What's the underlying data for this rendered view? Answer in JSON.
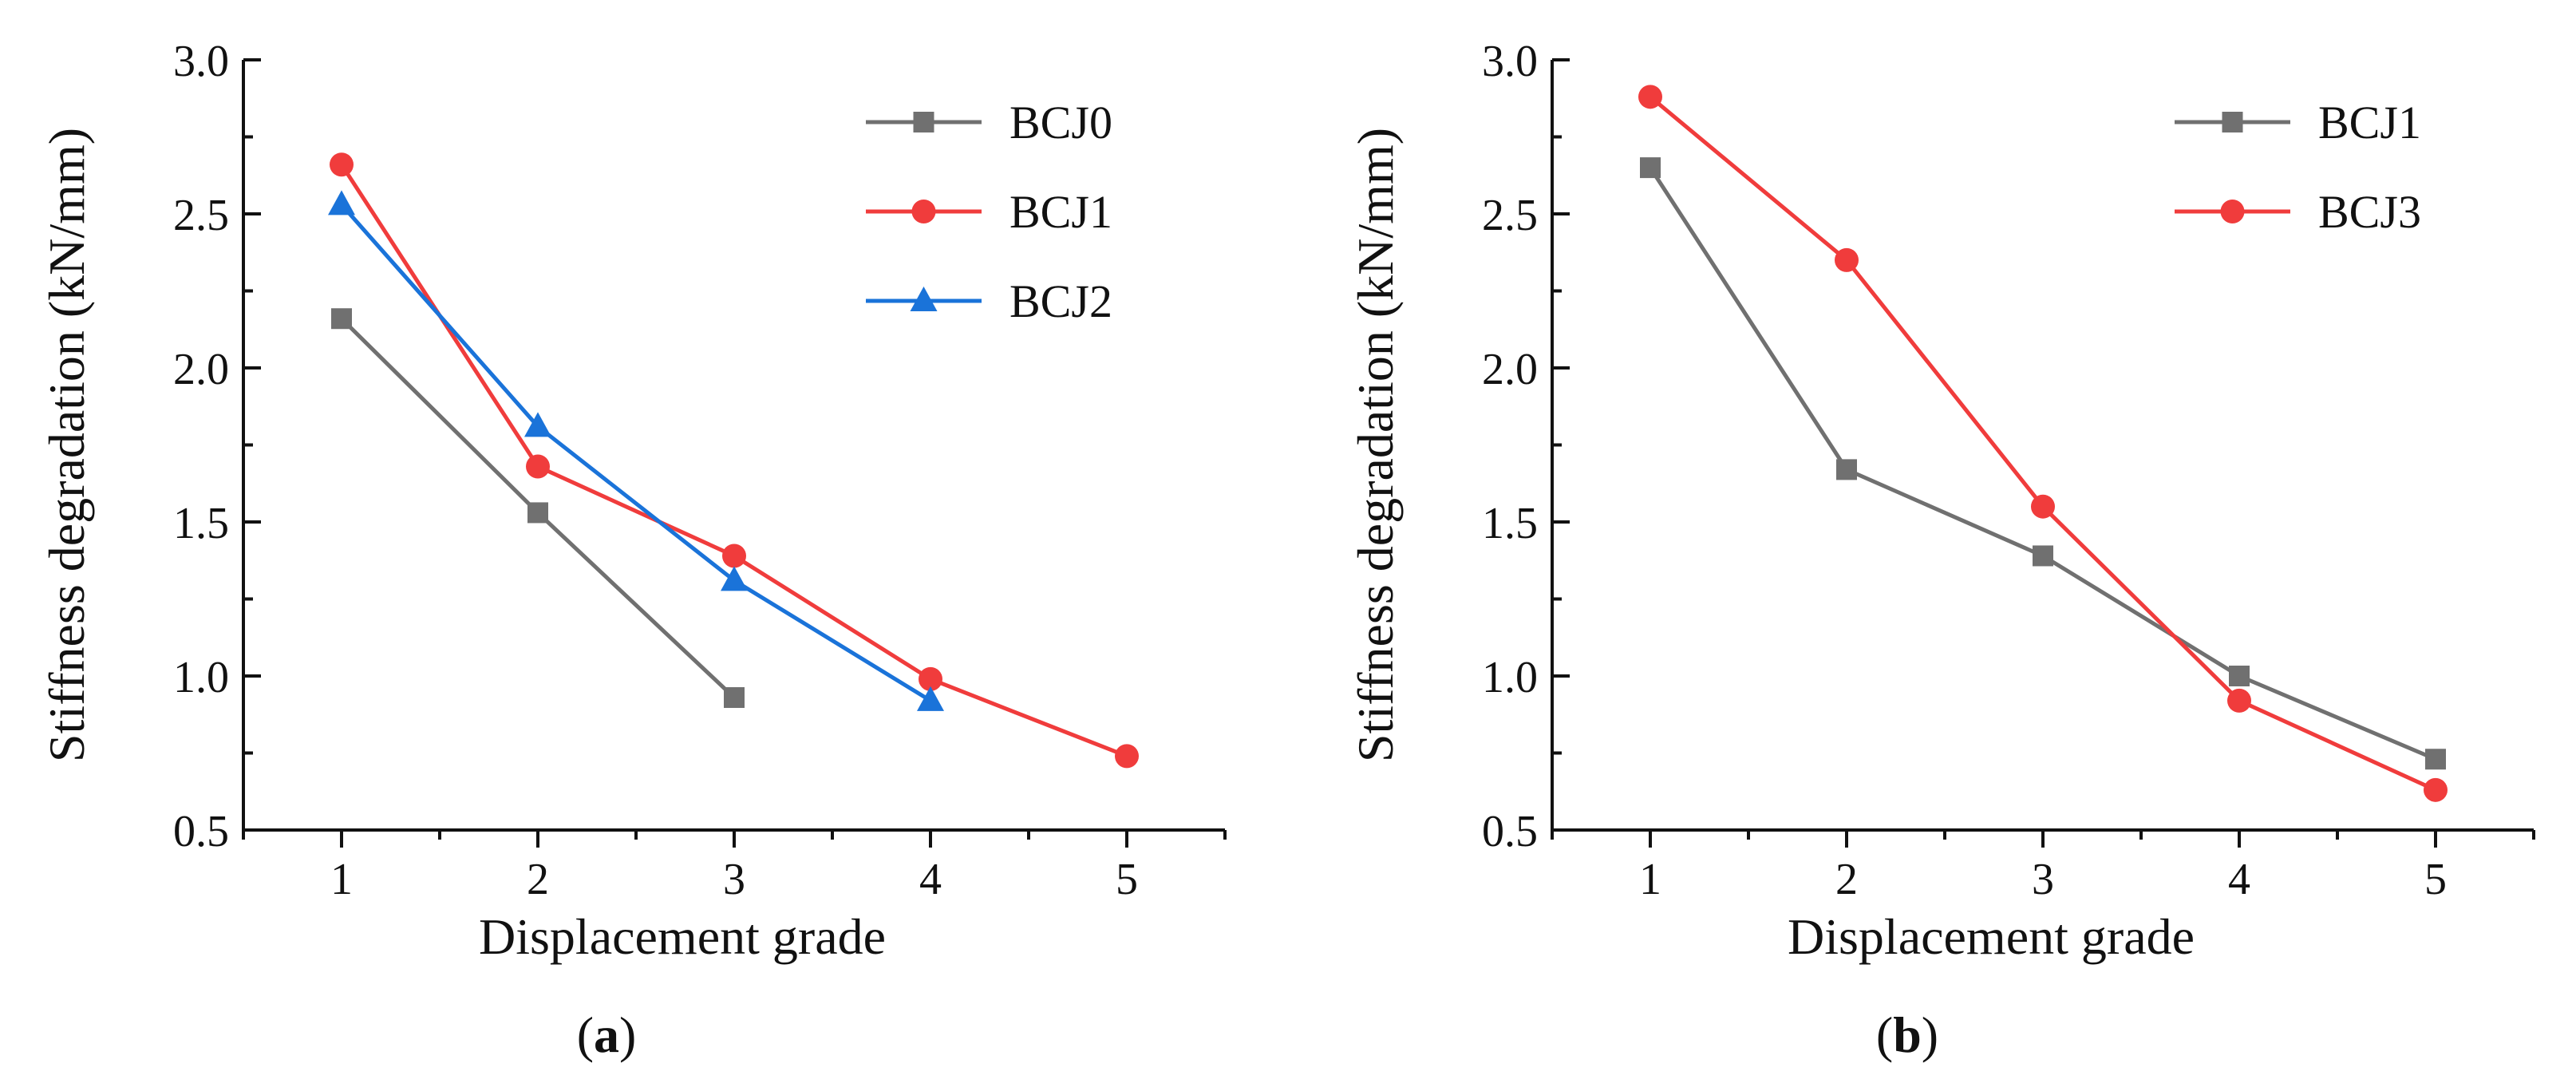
{
  "chart_data": [
    {
      "type": "line",
      "panel_label": "a",
      "xlabel": "Displacement grade",
      "ylabel": "Stiffness degradation (kN/mm)",
      "xlim": [
        0.5,
        5.5
      ],
      "ylim": [
        0.5,
        3.0
      ],
      "xticks": [
        "1",
        "2",
        "3",
        "4",
        "5"
      ],
      "yticks": [
        "0.5",
        "1.0",
        "1.5",
        "2.0",
        "2.5",
        "3.0"
      ],
      "legend_position": "top-right",
      "series": [
        {
          "name": "BCJ0",
          "color": "#707070",
          "marker": "square",
          "x": [
            1,
            2,
            3
          ],
          "values": [
            2.16,
            1.53,
            0.93
          ]
        },
        {
          "name": "BCJ1",
          "color": "#f03c3c",
          "marker": "circle",
          "x": [
            1,
            2,
            3,
            4,
            5
          ],
          "values": [
            2.66,
            1.68,
            1.39,
            0.99,
            0.74
          ]
        },
        {
          "name": "BCJ2",
          "color": "#1a73d9",
          "marker": "triangle",
          "x": [
            1,
            2,
            3,
            4
          ],
          "values": [
            2.53,
            1.81,
            1.31,
            0.92
          ]
        }
      ]
    },
    {
      "type": "line",
      "panel_label": "b",
      "xlabel": "Displacement grade",
      "ylabel": "Stiffness degradation (kN/mm)",
      "xlim": [
        0.5,
        5.5
      ],
      "ylim": [
        0.5,
        3.0
      ],
      "xticks": [
        "1",
        "2",
        "3",
        "4",
        "5"
      ],
      "yticks": [
        "0.5",
        "1.0",
        "1.5",
        "2.0",
        "2.5",
        "3.0"
      ],
      "legend_position": "top-right",
      "series": [
        {
          "name": "BCJ1",
          "color": "#707070",
          "marker": "square",
          "x": [
            1,
            2,
            3,
            4,
            5
          ],
          "values": [
            2.65,
            1.67,
            1.39,
            1.0,
            0.73
          ]
        },
        {
          "name": "BCJ3",
          "color": "#f03c3c",
          "marker": "circle",
          "x": [
            1,
            2,
            3,
            4,
            5
          ],
          "values": [
            2.88,
            2.35,
            1.55,
            0.92,
            0.63
          ]
        }
      ]
    }
  ]
}
